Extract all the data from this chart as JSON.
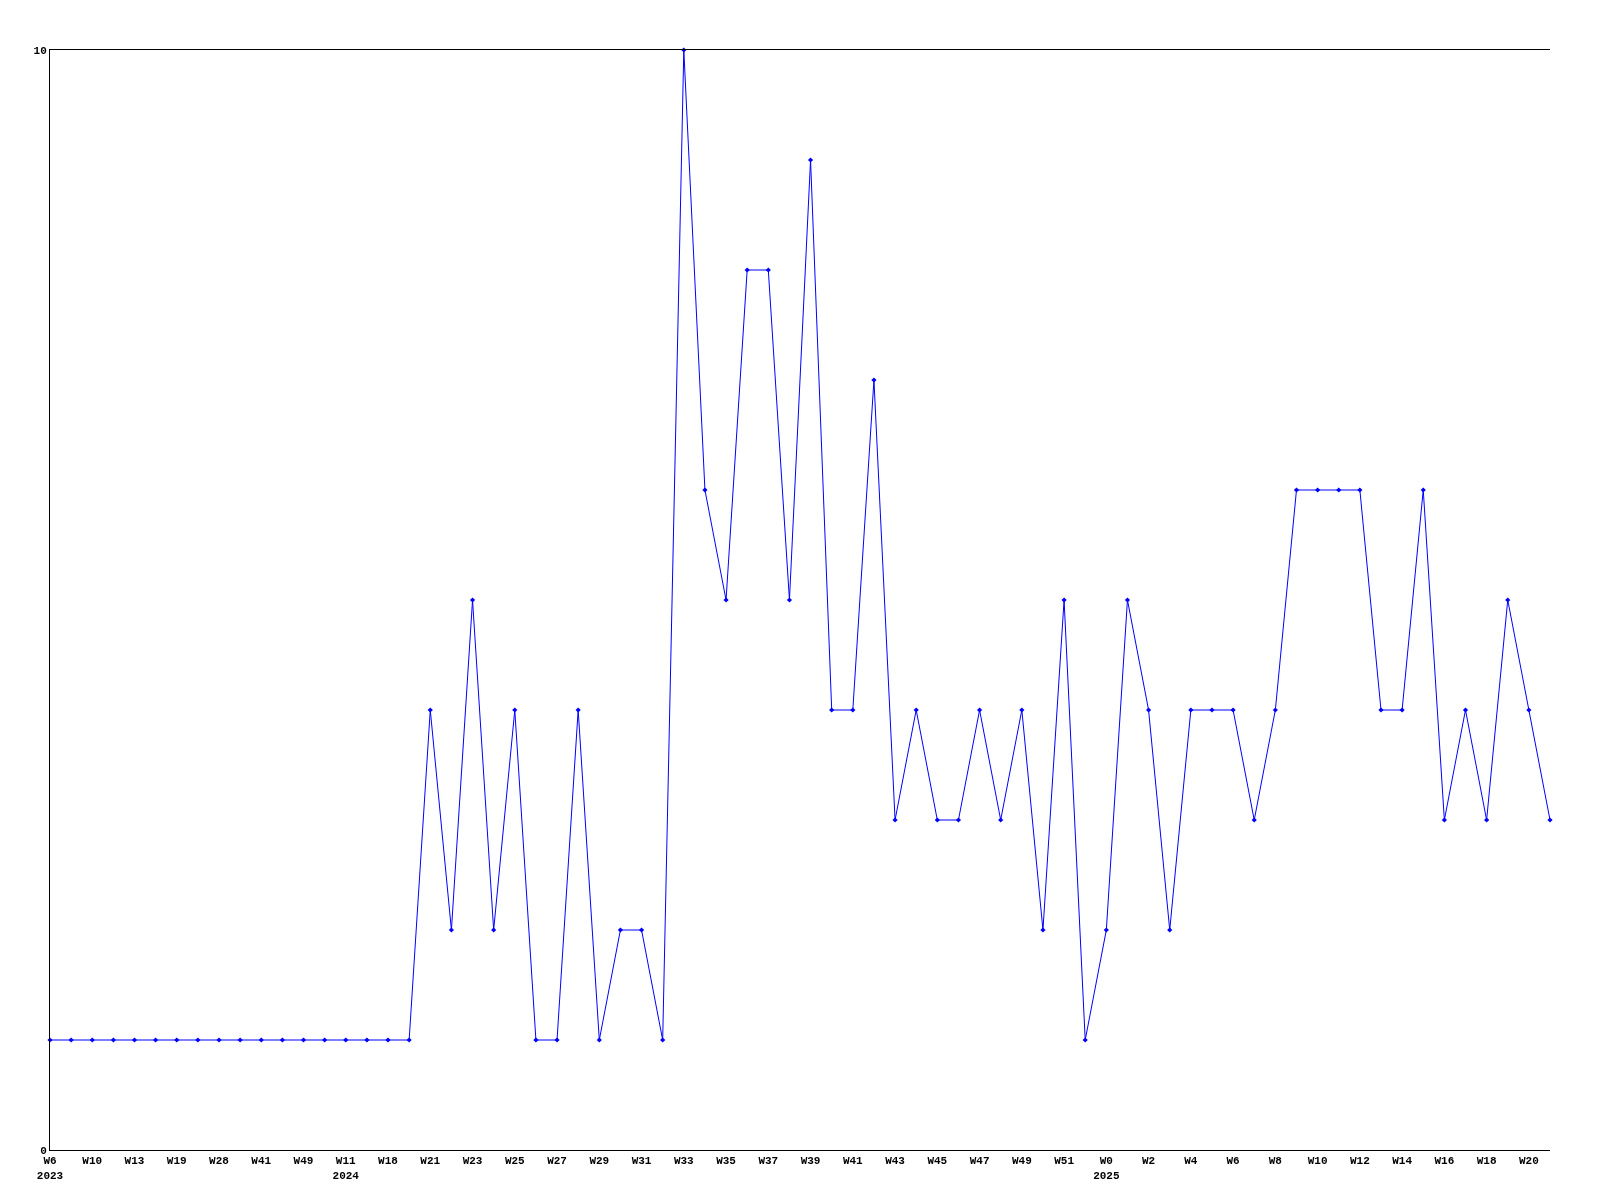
{
  "chart_data": {
    "type": "line",
    "categories": [
      "W6\n2023",
      null,
      "W10",
      null,
      "W13",
      null,
      "W19",
      null,
      "W28",
      null,
      "W41",
      null,
      "W49",
      null,
      "W11\n2024",
      null,
      "W18",
      null,
      "W21",
      null,
      "W23",
      null,
      "W25",
      null,
      "W27",
      null,
      "W29",
      null,
      "W31",
      null,
      "W33",
      null,
      "W35",
      null,
      "W37",
      null,
      "W39",
      null,
      "W41",
      null,
      "W43",
      null,
      "W45",
      null,
      "W47",
      null,
      "W49",
      null,
      "W51",
      null,
      "W0\n2025",
      null,
      "W2",
      null,
      "W4",
      null,
      "W6",
      null,
      "W8",
      null,
      "W10",
      null,
      "W12",
      null,
      "W14",
      null,
      "W16",
      null,
      "W18",
      null,
      "W20",
      null
    ],
    "series": [
      {
        "color": "#0000ff",
        "values": [
          1,
          1,
          1,
          1,
          1,
          1,
          1,
          1,
          1,
          1,
          1,
          1,
          1,
          1,
          1,
          1,
          1,
          1,
          4,
          2,
          5,
          2,
          4,
          1,
          1,
          4,
          1,
          2,
          2,
          1,
          10,
          6,
          5,
          8,
          8,
          5,
          9,
          4,
          4,
          7,
          3,
          4,
          3,
          3,
          4,
          3,
          4,
          2,
          5,
          1,
          2,
          5,
          4,
          2,
          4,
          4,
          4,
          3,
          4,
          6,
          6,
          6,
          6,
          4,
          4,
          6,
          3,
          4,
          3,
          5,
          4,
          3
        ]
      }
    ],
    "ylim": [
      0,
      10
    ],
    "yticks": [
      0,
      10
    ],
    "grid": false,
    "marker": "diamond",
    "line_style": "solid"
  }
}
